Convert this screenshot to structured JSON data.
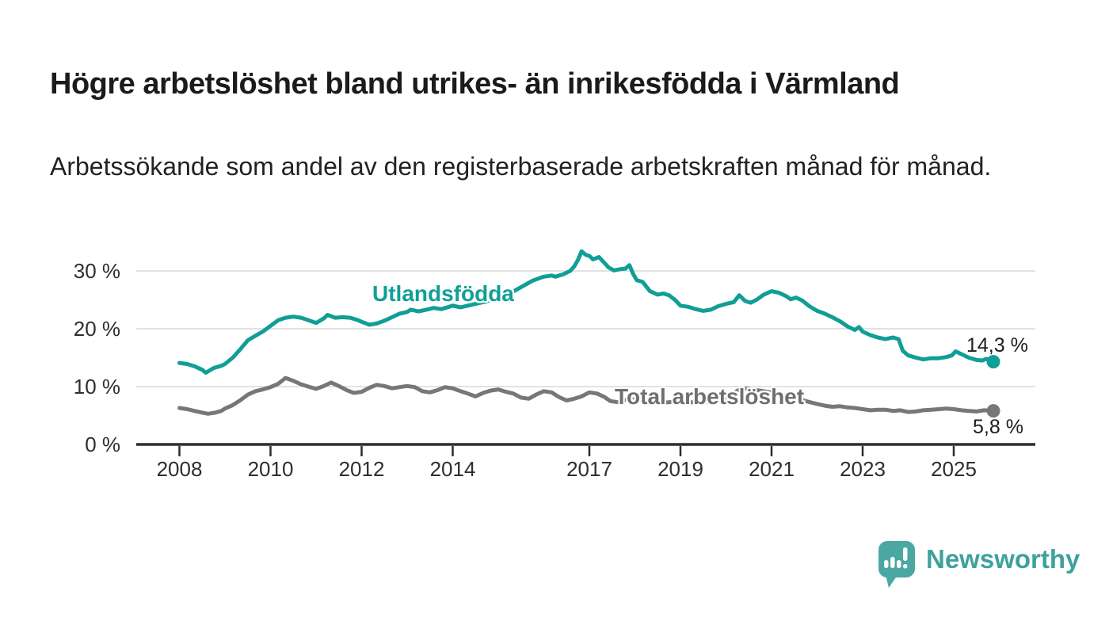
{
  "header": {
    "title": "Högre arbetslöshet bland utrikes- än inrikesfödda i Värmland",
    "subtitle": "Arbetssökande som andel av den registerbaserade arbetskraften månad för månad."
  },
  "footer": {
    "brand": "Newsworthy"
  },
  "colors": {
    "accent_teal": "#109e96",
    "series_gray": "#77777b",
    "logo_bubble_teal": "#4ba7a2",
    "wordmark_teal": "#3fa19b",
    "axis": "#2d2d2d",
    "grid": "#d9d9d9",
    "tick_text": "#2e2e2e"
  },
  "chart_data": {
    "type": "line",
    "title": "Högre arbetslöshet bland utrikes- än inrikesfödda i Värmland",
    "subtitle": "Arbetssökande som andel av den registerbaserade arbetskraften månad för månad.",
    "xlabel": "",
    "ylabel": "",
    "unit": "%",
    "grid": true,
    "legend_position": "inline-annotations",
    "x_axis": {
      "range_years": [
        2007.05,
        2026.8
      ],
      "ticks": [
        {
          "year": 2008,
          "label": "2008"
        },
        {
          "year": 2010,
          "label": "2010"
        },
        {
          "year": 2012,
          "label": "2012"
        },
        {
          "year": 2014,
          "label": "2014"
        },
        {
          "year": 2017,
          "label": "2017"
        },
        {
          "year": 2019,
          "label": "2019"
        },
        {
          "year": 2021,
          "label": "2021"
        },
        {
          "year": 2023,
          "label": "2023"
        },
        {
          "year": 2025,
          "label": "2025"
        }
      ]
    },
    "y_axis": {
      "range": [
        0,
        34.5
      ],
      "ticks": [
        {
          "value": 0,
          "label": "0 %"
        },
        {
          "value": 10,
          "label": "10 %"
        },
        {
          "value": 20,
          "label": "20 %"
        },
        {
          "value": 30,
          "label": "30 %"
        }
      ]
    },
    "series": [
      {
        "name": "Utlandsfödda",
        "color": "#109e96",
        "end_value": 14.3,
        "end_label": "14,3 %",
        "points": [
          [
            2008.0,
            14.1
          ],
          [
            2008.17,
            13.9
          ],
          [
            2008.33,
            13.5
          ],
          [
            2008.5,
            12.9
          ],
          [
            2008.58,
            12.4
          ],
          [
            2008.75,
            13.2
          ],
          [
            2008.92,
            13.6
          ],
          [
            2009.0,
            13.9
          ],
          [
            2009.17,
            15.0
          ],
          [
            2009.33,
            16.4
          ],
          [
            2009.5,
            18.0
          ],
          [
            2009.67,
            18.8
          ],
          [
            2009.83,
            19.5
          ],
          [
            2010.0,
            20.5
          ],
          [
            2010.17,
            21.5
          ],
          [
            2010.33,
            21.9
          ],
          [
            2010.5,
            22.1
          ],
          [
            2010.67,
            21.9
          ],
          [
            2010.83,
            21.5
          ],
          [
            2011.0,
            21.0
          ],
          [
            2011.17,
            21.8
          ],
          [
            2011.25,
            22.4
          ],
          [
            2011.42,
            21.9
          ],
          [
            2011.58,
            22.0
          ],
          [
            2011.75,
            21.9
          ],
          [
            2011.92,
            21.5
          ],
          [
            2012.0,
            21.2
          ],
          [
            2012.17,
            20.7
          ],
          [
            2012.33,
            20.9
          ],
          [
            2012.5,
            21.4
          ],
          [
            2012.67,
            22.0
          ],
          [
            2012.83,
            22.6
          ],
          [
            2013.0,
            22.9
          ],
          [
            2013.08,
            23.3
          ],
          [
            2013.25,
            23.0
          ],
          [
            2013.42,
            23.3
          ],
          [
            2013.58,
            23.6
          ],
          [
            2013.75,
            23.4
          ],
          [
            2013.92,
            23.8
          ],
          [
            2014.0,
            24.0
          ],
          [
            2014.17,
            23.7
          ],
          [
            2014.33,
            24.0
          ],
          [
            2014.5,
            24.3
          ],
          [
            2014.67,
            24.6
          ],
          [
            2014.83,
            24.9
          ],
          [
            2015.0,
            25.3
          ],
          [
            2015.25,
            26.1
          ],
          [
            2015.5,
            27.2
          ],
          [
            2015.75,
            28.3
          ],
          [
            2015.92,
            28.8
          ],
          [
            2016.0,
            29.0
          ],
          [
            2016.17,
            29.2
          ],
          [
            2016.25,
            29.0
          ],
          [
            2016.42,
            29.4
          ],
          [
            2016.58,
            30.0
          ],
          [
            2016.67,
            30.8
          ],
          [
            2016.75,
            31.9
          ],
          [
            2016.83,
            33.4
          ],
          [
            2016.92,
            32.8
          ],
          [
            2017.0,
            32.6
          ],
          [
            2017.08,
            32.0
          ],
          [
            2017.21,
            32.4
          ],
          [
            2017.33,
            31.4
          ],
          [
            2017.42,
            30.6
          ],
          [
            2017.54,
            30.1
          ],
          [
            2017.67,
            30.3
          ],
          [
            2017.79,
            30.4
          ],
          [
            2017.88,
            31.0
          ],
          [
            2017.96,
            29.5
          ],
          [
            2018.04,
            28.4
          ],
          [
            2018.17,
            28.1
          ],
          [
            2018.33,
            26.5
          ],
          [
            2018.5,
            25.9
          ],
          [
            2018.63,
            26.1
          ],
          [
            2018.75,
            25.8
          ],
          [
            2018.88,
            25.0
          ],
          [
            2019.0,
            24.0
          ],
          [
            2019.17,
            23.8
          ],
          [
            2019.33,
            23.4
          ],
          [
            2019.5,
            23.1
          ],
          [
            2019.67,
            23.3
          ],
          [
            2019.83,
            23.9
          ],
          [
            2020.0,
            24.3
          ],
          [
            2020.17,
            24.6
          ],
          [
            2020.29,
            25.8
          ],
          [
            2020.42,
            24.8
          ],
          [
            2020.54,
            24.5
          ],
          [
            2020.67,
            25.0
          ],
          [
            2020.83,
            25.9
          ],
          [
            2021.0,
            26.5
          ],
          [
            2021.17,
            26.2
          ],
          [
            2021.33,
            25.6
          ],
          [
            2021.42,
            25.1
          ],
          [
            2021.54,
            25.4
          ],
          [
            2021.67,
            24.9
          ],
          [
            2021.83,
            23.9
          ],
          [
            2022.0,
            23.1
          ],
          [
            2022.17,
            22.6
          ],
          [
            2022.33,
            22.0
          ],
          [
            2022.5,
            21.3
          ],
          [
            2022.67,
            20.4
          ],
          [
            2022.83,
            19.8
          ],
          [
            2022.92,
            20.3
          ],
          [
            2023.0,
            19.5
          ],
          [
            2023.17,
            18.9
          ],
          [
            2023.33,
            18.5
          ],
          [
            2023.5,
            18.2
          ],
          [
            2023.67,
            18.5
          ],
          [
            2023.79,
            18.2
          ],
          [
            2023.88,
            16.2
          ],
          [
            2024.0,
            15.4
          ],
          [
            2024.17,
            15.0
          ],
          [
            2024.33,
            14.7
          ],
          [
            2024.5,
            14.9
          ],
          [
            2024.67,
            14.9
          ],
          [
            2024.83,
            15.1
          ],
          [
            2024.96,
            15.4
          ],
          [
            2025.04,
            16.1
          ],
          [
            2025.17,
            15.6
          ],
          [
            2025.33,
            15.0
          ],
          [
            2025.5,
            14.6
          ],
          [
            2025.63,
            14.5
          ],
          [
            2025.71,
            14.8
          ],
          [
            2025.87,
            14.3
          ]
        ]
      },
      {
        "name": "Total arbetslöshet",
        "color": "#77777b",
        "end_value": 5.8,
        "end_label": "5,8 %",
        "points": [
          [
            2008.0,
            6.3
          ],
          [
            2008.17,
            6.1
          ],
          [
            2008.33,
            5.8
          ],
          [
            2008.5,
            5.5
          ],
          [
            2008.63,
            5.3
          ],
          [
            2008.79,
            5.5
          ],
          [
            2008.92,
            5.8
          ],
          [
            2009.0,
            6.2
          ],
          [
            2009.17,
            6.8
          ],
          [
            2009.33,
            7.6
          ],
          [
            2009.5,
            8.6
          ],
          [
            2009.67,
            9.2
          ],
          [
            2009.83,
            9.5
          ],
          [
            2010.0,
            9.9
          ],
          [
            2010.17,
            10.5
          ],
          [
            2010.33,
            11.5
          ],
          [
            2010.5,
            11.0
          ],
          [
            2010.67,
            10.4
          ],
          [
            2010.83,
            10.0
          ],
          [
            2011.0,
            9.6
          ],
          [
            2011.17,
            10.1
          ],
          [
            2011.33,
            10.7
          ],
          [
            2011.5,
            10.1
          ],
          [
            2011.67,
            9.4
          ],
          [
            2011.83,
            8.9
          ],
          [
            2012.0,
            9.1
          ],
          [
            2012.17,
            9.8
          ],
          [
            2012.33,
            10.3
          ],
          [
            2012.5,
            10.1
          ],
          [
            2012.67,
            9.7
          ],
          [
            2012.83,
            9.9
          ],
          [
            2013.0,
            10.1
          ],
          [
            2013.17,
            9.9
          ],
          [
            2013.33,
            9.2
          ],
          [
            2013.5,
            9.0
          ],
          [
            2013.67,
            9.4
          ],
          [
            2013.83,
            9.9
          ],
          [
            2014.0,
            9.7
          ],
          [
            2014.17,
            9.2
          ],
          [
            2014.33,
            8.8
          ],
          [
            2014.5,
            8.3
          ],
          [
            2014.67,
            8.9
          ],
          [
            2014.83,
            9.3
          ],
          [
            2015.0,
            9.5
          ],
          [
            2015.17,
            9.1
          ],
          [
            2015.33,
            8.8
          ],
          [
            2015.5,
            8.1
          ],
          [
            2015.67,
            7.9
          ],
          [
            2015.83,
            8.6
          ],
          [
            2016.0,
            9.2
          ],
          [
            2016.17,
            9.0
          ],
          [
            2016.33,
            8.2
          ],
          [
            2016.5,
            7.6
          ],
          [
            2016.67,
            7.9
          ],
          [
            2016.83,
            8.3
          ],
          [
            2017.0,
            9.0
          ],
          [
            2017.17,
            8.8
          ],
          [
            2017.33,
            8.2
          ],
          [
            2017.46,
            7.5
          ],
          [
            2017.63,
            7.3
          ],
          [
            2017.79,
            7.7
          ],
          [
            2017.92,
            7.9
          ],
          [
            2018.0,
            7.7
          ],
          [
            2018.25,
            7.4
          ],
          [
            2018.5,
            7.1
          ],
          [
            2018.75,
            7.3
          ],
          [
            2019.0,
            7.5
          ],
          [
            2019.25,
            7.3
          ],
          [
            2019.5,
            7.2
          ],
          [
            2019.75,
            7.5
          ],
          [
            2020.0,
            7.8
          ],
          [
            2020.25,
            9.3
          ],
          [
            2020.42,
            9.7
          ],
          [
            2020.58,
            9.5
          ],
          [
            2020.83,
            9.2
          ],
          [
            2021.0,
            9.0
          ],
          [
            2021.25,
            8.6
          ],
          [
            2021.5,
            8.1
          ],
          [
            2021.75,
            7.5
          ],
          [
            2022.0,
            7.0
          ],
          [
            2022.17,
            6.7
          ],
          [
            2022.33,
            6.5
          ],
          [
            2022.5,
            6.6
          ],
          [
            2022.67,
            6.4
          ],
          [
            2022.83,
            6.3
          ],
          [
            2023.0,
            6.1
          ],
          [
            2023.17,
            5.9
          ],
          [
            2023.33,
            6.0
          ],
          [
            2023.5,
            6.0
          ],
          [
            2023.67,
            5.8
          ],
          [
            2023.83,
            5.9
          ],
          [
            2024.0,
            5.6
          ],
          [
            2024.17,
            5.7
          ],
          [
            2024.33,
            5.9
          ],
          [
            2024.5,
            6.0
          ],
          [
            2024.67,
            6.1
          ],
          [
            2024.83,
            6.2
          ],
          [
            2025.0,
            6.1
          ],
          [
            2025.17,
            5.9
          ],
          [
            2025.33,
            5.8
          ],
          [
            2025.5,
            5.7
          ],
          [
            2025.67,
            5.9
          ],
          [
            2025.87,
            5.8
          ]
        ]
      }
    ]
  }
}
